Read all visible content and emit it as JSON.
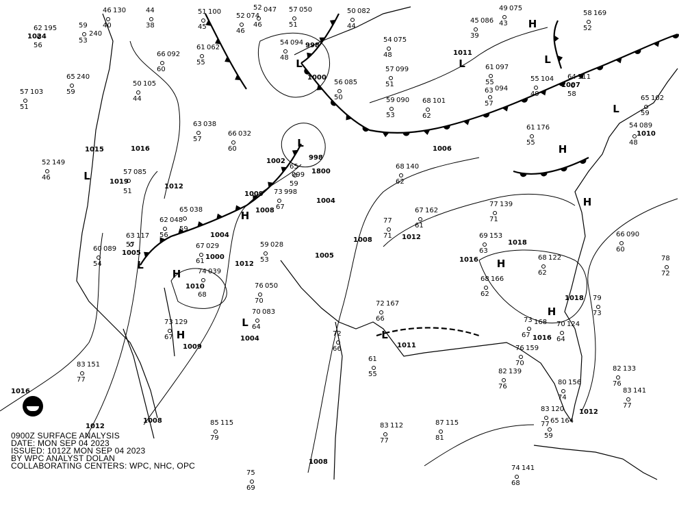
{
  "caption": {
    "line1": "0900Z SURFACE ANALYSIS",
    "line2": "DATE: MON SEP 04 2023",
    "line3": "ISSUED: 1012Z MON SEP 04 2023",
    "line4": "BY WPC ANALYST DOLAN",
    "line5": "COLLABORATING CENTERS: WPC, NHC, OPC"
  },
  "logo": "NOAA",
  "colors": {
    "lines": "#000000",
    "background": "#ffffff"
  },
  "pressure_centers": [
    {
      "type": "H"
    },
    {
      "type": "L"
    },
    {
      "type": "L"
    },
    {
      "type": "H"
    },
    {
      "type": "L"
    },
    {
      "type": "L"
    },
    {
      "type": "H"
    },
    {
      "type": "H"
    },
    {
      "type": "L"
    },
    {
      "type": "L"
    },
    {
      "type": "H"
    },
    {
      "type": "H"
    },
    {
      "type": "H"
    },
    {
      "type": "L"
    },
    {
      "type": "L"
    },
    {
      "type": "H"
    },
    {
      "type": "L"
    }
  ],
  "isobar_labels": [
    "1024",
    "998",
    "1000",
    "998",
    "1002",
    "1004",
    "1009",
    "1008",
    "1007",
    "1011",
    "1010",
    "1015",
    "1016",
    "1019",
    "1012",
    "1005",
    "1010",
    "1004",
    "1000",
    "1012",
    "1008",
    "1012",
    "1016",
    "1018",
    "1018",
    "1016",
    "1011",
    "1004",
    "1009",
    "1016",
    "1012",
    "1008",
    "1008",
    "1012",
    "1006",
    "1005",
    "1800"
  ],
  "stations": [
    {
      "t": "46",
      "p": "130"
    },
    {
      "t": "44",
      "p": ""
    },
    {
      "t": "51",
      "p": "100"
    },
    {
      "t": "52",
      "p": "074"
    },
    {
      "t": "52",
      "p": "047"
    },
    {
      "t": "57",
      "p": "050"
    },
    {
      "t": "50",
      "p": "082"
    },
    {
      "t": "54",
      "p": "075"
    },
    {
      "t": "45",
      "p": "086"
    },
    {
      "t": "49",
      "p": "075"
    },
    {
      "t": "58",
      "p": "169"
    },
    {
      "t": "59",
      "p": "240"
    },
    {
      "t": "62",
      "p": "195"
    },
    {
      "t": "65",
      "p": "240"
    },
    {
      "t": "57",
      "p": "103"
    },
    {
      "t": "66",
      "p": "092"
    },
    {
      "t": "50",
      "p": "105"
    },
    {
      "t": "61",
      "p": "062"
    },
    {
      "t": "54",
      "p": "094"
    },
    {
      "t": "57",
      "p": "099"
    },
    {
      "t": "61",
      "p": "097"
    },
    {
      "t": "63",
      "p": "094"
    },
    {
      "t": "55",
      "p": "104"
    },
    {
      "t": "64",
      "p": "111"
    },
    {
      "t": "65",
      "p": "102"
    },
    {
      "t": "54",
      "p": "089"
    },
    {
      "t": "63",
      "p": "038"
    },
    {
      "t": "66",
      "p": "032"
    },
    {
      "t": "56",
      "p": "085"
    },
    {
      "t": "59",
      "p": "090"
    },
    {
      "t": "68",
      "p": "101"
    },
    {
      "t": "61",
      "p": "176"
    },
    {
      "t": "52",
      "p": "149"
    },
    {
      "t": "57",
      "p": "085"
    },
    {
      "t": "62",
      "p": "048"
    },
    {
      "t": "65",
      "p": "038"
    },
    {
      "t": "73",
      "p": "998"
    },
    {
      "t": "65",
      "p": "099"
    },
    {
      "t": "68",
      "p": "140"
    },
    {
      "t": "67",
      "p": "162"
    },
    {
      "t": "77",
      "p": "139"
    },
    {
      "t": "66",
      "p": "090"
    },
    {
      "t": "63",
      "p": "117"
    },
    {
      "t": "60",
      "p": "089"
    },
    {
      "t": "67",
      "p": "029"
    },
    {
      "t": "59",
      "p": "028"
    },
    {
      "t": "74",
      "p": "039"
    },
    {
      "t": "76",
      "p": "050"
    },
    {
      "t": "70",
      "p": "083"
    },
    {
      "t": "73",
      "p": "129"
    },
    {
      "t": "72",
      "p": "167"
    },
    {
      "t": "68",
      "p": "166"
    },
    {
      "t": "73",
      "p": "168"
    },
    {
      "t": "76",
      "p": "159"
    },
    {
      "t": "70",
      "p": "124"
    },
    {
      "t": "83",
      "p": "151"
    },
    {
      "t": "82",
      "p": "139"
    },
    {
      "t": "82",
      "p": "133"
    },
    {
      "t": "83",
      "p": "141"
    },
    {
      "t": "80",
      "p": "156"
    },
    {
      "t": "85",
      "p": "115"
    },
    {
      "t": "87",
      "p": "115"
    },
    {
      "t": "83",
      "p": "112"
    },
    {
      "t": "74",
      "p": "141"
    },
    {
      "t": "83",
      "p": "120"
    },
    {
      "t": "65",
      "p": "164"
    },
    {
      "t": "69",
      "p": "153"
    },
    {
      "t": "68",
      "p": "122"
    },
    {
      "t": "77",
      "p": ""
    },
    {
      "t": "78",
      "p": ""
    },
    {
      "t": "79",
      "p": ""
    },
    {
      "t": "72",
      "p": ""
    },
    {
      "t": "61",
      "p": ""
    },
    {
      "t": "75",
      "p": ""
    }
  ]
}
